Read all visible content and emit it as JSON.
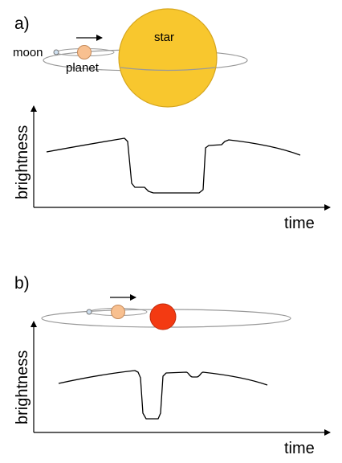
{
  "panel_a": {
    "label": "a)",
    "star_label": "star",
    "moon_label": "moon",
    "planet_label": "planet",
    "y_axis_label": "brightness",
    "x_axis_label": "time"
  },
  "panel_b": {
    "label": "b)",
    "y_axis_label": "brightness",
    "x_axis_label": "time"
  },
  "colors": {
    "star_a": "#f8c72e",
    "star_a_stroke": "#d5a51e",
    "star_b": "#f33a12",
    "star_b_stroke": "#c12a0c",
    "planet": "#f8c090",
    "planet_stroke": "#c48a5b",
    "moon": "#cfe0f0",
    "orbit": "#999999"
  }
}
